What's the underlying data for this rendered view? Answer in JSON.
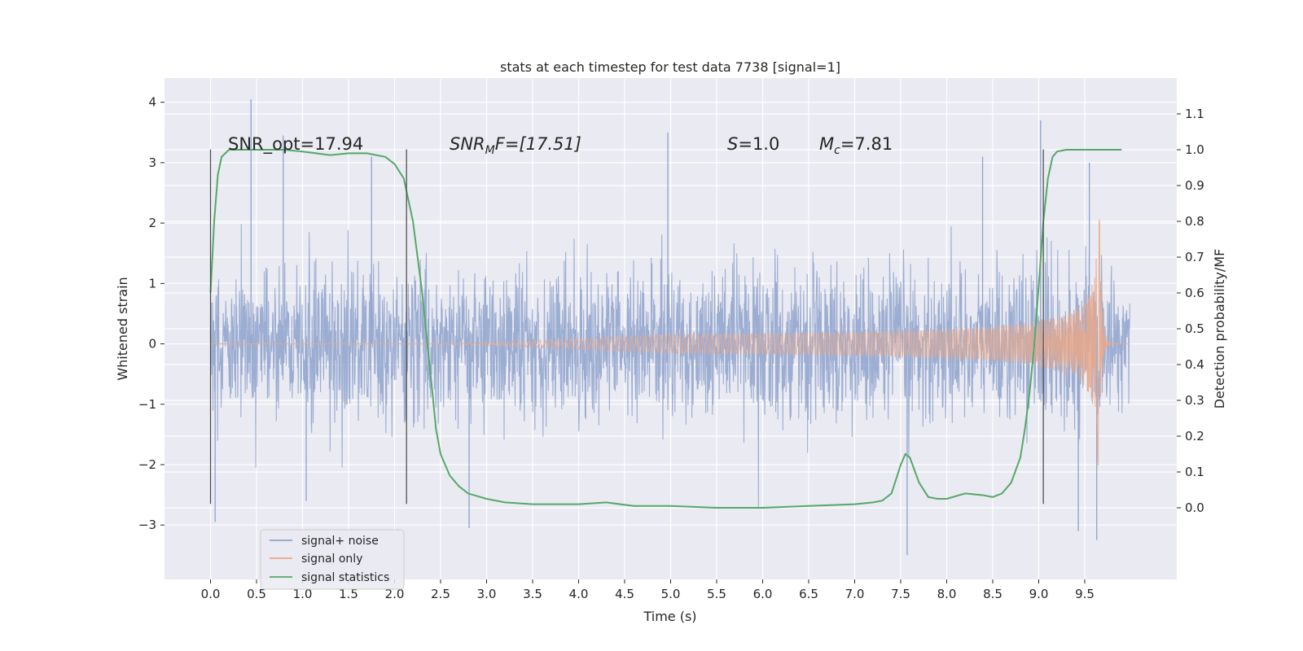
{
  "chart_data": {
    "type": "line",
    "title": "stats at each timestep for test data 7738 [signal=1]",
    "xlabel": "Time (s)",
    "ylabel": "Whitened strain",
    "ylabel_right": "Detection probability/MF",
    "xlim": [
      -0.5,
      10.5
    ],
    "ylim": [
      -3.9,
      4.4
    ],
    "ylim_right": [
      -0.2,
      1.2
    ],
    "x_ticks": [
      0.0,
      0.5,
      1.0,
      1.5,
      2.0,
      2.5,
      3.0,
      3.5,
      4.0,
      4.5,
      5.0,
      5.5,
      6.0,
      6.5,
      7.0,
      7.5,
      8.0,
      8.5,
      9.0,
      9.5
    ],
    "x_tick_labels": [
      "0.0",
      "0.5",
      "1.0",
      "1.5",
      "2.0",
      "2.5",
      "3.0",
      "3.5",
      "4.0",
      "4.5",
      "5.0",
      "5.5",
      "6.0",
      "6.5",
      "7.0",
      "7.5",
      "8.0",
      "8.5",
      "9.0",
      "9.5"
    ],
    "y_ticks": [
      -3,
      -2,
      -1,
      0,
      1,
      2,
      3,
      4
    ],
    "y_tick_labels": [
      "−3",
      "−2",
      "−1",
      "0",
      "1",
      "2",
      "3",
      "4"
    ],
    "y_right_ticks": [
      0.0,
      0.1,
      0.2,
      0.3,
      0.4,
      0.5,
      0.6,
      0.7,
      0.8,
      0.9,
      1.0,
      1.1
    ],
    "y_right_tick_labels": [
      "0.0",
      "0.1",
      "0.2",
      "0.3",
      "0.4",
      "0.5",
      "0.6",
      "0.7",
      "0.8",
      "0.9",
      "1.0",
      "1.1"
    ],
    "grid": true,
    "legend": {
      "position": "lower-left",
      "entries": [
        {
          "label": "signal+ noise",
          "color": "#8ea2cc"
        },
        {
          "label": "signal only",
          "color": "#e9a889"
        },
        {
          "label": "signal statistics",
          "color": "#55a868"
        }
      ]
    },
    "annotations": {
      "snr_opt": "SNR_opt=17.94",
      "snr_mf_base": "SNR",
      "snr_mf_sub": "M",
      "snr_mf_tail": "F=[17.51]",
      "s_var": "S",
      "s_val": "=1.0",
      "mc_var": "M",
      "mc_sub": "c",
      "mc_val": "=7.81"
    },
    "vertical_lines_x": [
      0.0,
      2.13,
      9.05
    ],
    "vertical_line_range": [
      -2.65,
      3.22
    ],
    "series": [
      {
        "name": "signal+ noise",
        "color": "#8ea2cc",
        "x_range": [
          0.0,
          9.99
        ],
        "envelope_upper": 1.6,
        "envelope_lower": -1.65,
        "notable_peaks": [
          [
            0.44,
            4.05
          ],
          [
            0.79,
            3.45
          ],
          [
            1.75,
            3.1
          ],
          [
            4.97,
            3.5
          ],
          [
            8.39,
            3.1
          ],
          [
            9.02,
            3.7
          ],
          [
            9.55,
            3.0
          ]
        ],
        "notable_troughs": [
          [
            0.05,
            -2.95
          ],
          [
            1.04,
            -2.6
          ],
          [
            2.81,
            -3.05
          ],
          [
            7.57,
            -3.5
          ],
          [
            9.43,
            -3.1
          ],
          [
            9.63,
            -3.25
          ]
        ]
      },
      {
        "name": "signal only",
        "color": "#e9a889",
        "x_range": [
          0.0,
          9.99
        ],
        "chirp_start": 4.9,
        "merger_time": 9.66,
        "peak_amplitude": 2.25
      },
      {
        "name": "signal statistics",
        "color": "#55a868",
        "x": [
          0.0,
          0.04,
          0.08,
          0.12,
          0.2,
          0.3,
          0.5,
          0.8,
          1.0,
          1.3,
          1.5,
          1.7,
          1.9,
          2.0,
          2.1,
          2.2,
          2.3,
          2.4,
          2.45,
          2.5,
          2.6,
          2.7,
          2.8,
          3.0,
          3.2,
          3.5,
          3.8,
          4.0,
          4.3,
          4.6,
          5.0,
          5.5,
          6.0,
          6.5,
          7.0,
          7.2,
          7.3,
          7.4,
          7.5,
          7.55,
          7.6,
          7.7,
          7.8,
          7.9,
          8.0,
          8.2,
          8.4,
          8.5,
          8.6,
          8.7,
          8.8,
          8.85,
          8.9,
          8.95,
          9.0,
          9.05,
          9.1,
          9.15,
          9.2,
          9.3,
          9.5,
          9.7,
          9.9
        ],
        "values": [
          0.6,
          0.8,
          0.93,
          0.98,
          1.0,
          1.0,
          1.0,
          1.0,
          0.995,
          0.985,
          0.99,
          0.99,
          0.98,
          0.96,
          0.92,
          0.8,
          0.6,
          0.35,
          0.22,
          0.15,
          0.09,
          0.06,
          0.04,
          0.025,
          0.015,
          0.01,
          0.01,
          0.01,
          0.015,
          0.005,
          0.005,
          0.0,
          0.0,
          0.005,
          0.01,
          0.015,
          0.02,
          0.04,
          0.12,
          0.15,
          0.14,
          0.07,
          0.03,
          0.025,
          0.025,
          0.04,
          0.035,
          0.03,
          0.04,
          0.07,
          0.14,
          0.22,
          0.32,
          0.45,
          0.62,
          0.8,
          0.92,
          0.98,
          0.995,
          1.0,
          1.0,
          1.0,
          1.0
        ]
      }
    ]
  }
}
